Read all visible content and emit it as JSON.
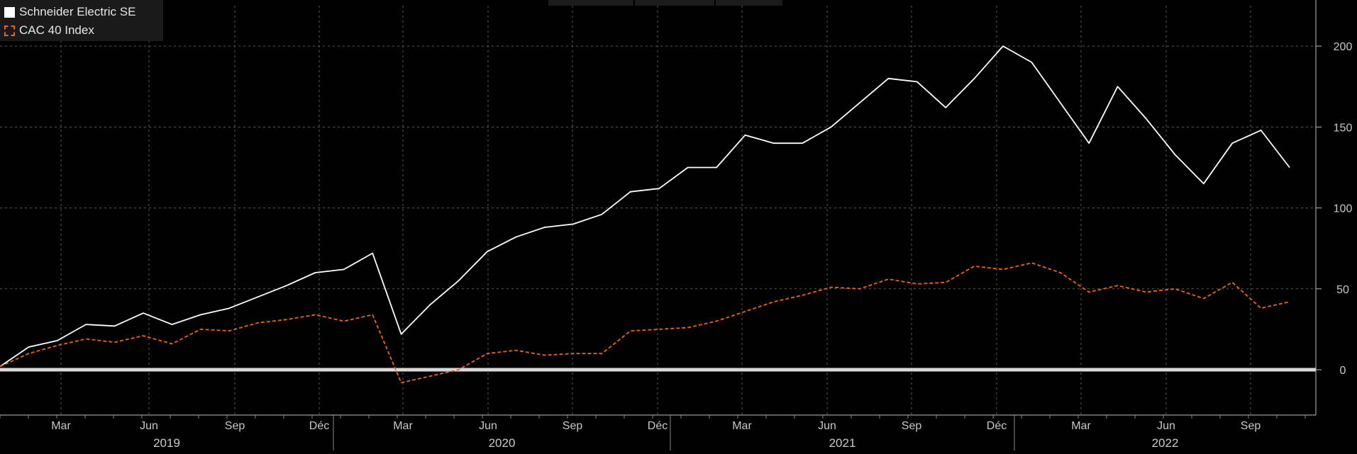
{
  "chart_data": {
    "type": "line",
    "title": "",
    "xlabel": "",
    "ylabel": "",
    "ylim": [
      -28,
      225
    ],
    "yticks": [
      0,
      50,
      100,
      150,
      200
    ],
    "grid": true,
    "legend_position": "top-left",
    "month_labels": [
      "Mar",
      "Jun",
      "Sep",
      "Déc",
      "Mar",
      "Jun",
      "Sep",
      "Déc",
      "Mar",
      "Jun",
      "Sep",
      "Déc",
      "Mar",
      "Jun",
      "Sep"
    ],
    "year_labels": [
      "2019",
      "2020",
      "2021",
      "2022"
    ],
    "x": [
      "2019-01",
      "2019-02",
      "2019-03",
      "2019-04",
      "2019-05",
      "2019-06",
      "2019-07",
      "2019-08",
      "2019-09",
      "2019-10",
      "2019-11",
      "2019-12",
      "2020-01",
      "2020-02",
      "2020-03",
      "2020-04",
      "2020-05",
      "2020-06",
      "2020-07",
      "2020-08",
      "2020-09",
      "2020-10",
      "2020-11",
      "2020-12",
      "2021-01",
      "2021-02",
      "2021-03",
      "2021-04",
      "2021-05",
      "2021-06",
      "2021-07",
      "2021-08",
      "2021-09",
      "2021-10",
      "2021-11",
      "2021-12",
      "2022-01",
      "2022-02",
      "2022-03",
      "2022-04",
      "2022-05",
      "2022-06",
      "2022-07",
      "2022-08",
      "2022-09",
      "2022-10"
    ],
    "series": [
      {
        "name": "Schneider Electric SE",
        "color": "#ffffff",
        "style": "solid",
        "values": [
          2,
          14,
          18,
          28,
          27,
          35,
          28,
          34,
          38,
          45,
          52,
          60,
          62,
          72,
          22,
          40,
          55,
          73,
          82,
          88,
          90,
          96,
          110,
          112,
          125,
          125,
          145,
          140,
          140,
          150,
          165,
          180,
          178,
          162,
          180,
          200,
          190,
          165,
          140,
          175,
          155,
          133,
          115,
          140,
          148,
          125
        ]
      },
      {
        "name": "CAC 40 Index",
        "color": "#e8651b",
        "style": "dashed",
        "values": [
          2,
          10,
          15,
          19,
          17,
          21,
          16,
          25,
          24,
          29,
          31,
          34,
          30,
          34,
          -8,
          -4,
          0,
          10,
          12,
          9,
          10,
          10,
          24,
          25,
          26,
          30,
          36,
          42,
          46,
          51,
          50,
          56,
          53,
          54,
          64,
          62,
          66,
          60,
          48,
          52,
          48,
          50,
          44,
          54,
          38,
          42
        ]
      }
    ]
  }
}
